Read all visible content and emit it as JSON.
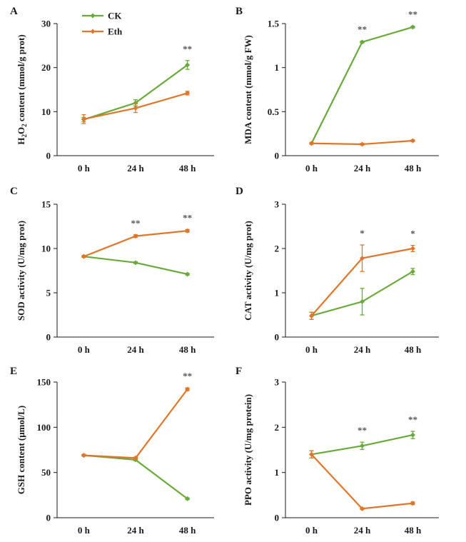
{
  "colors": {
    "CK": "#6aaa3a",
    "Eth": "#e0762a",
    "axis": "#1a1a1a"
  },
  "legend": [
    {
      "name": "CK",
      "color_key": "CK"
    },
    {
      "name": "Eth",
      "color_key": "Eth"
    }
  ],
  "chart_data": [
    {
      "panel": "A",
      "type": "line",
      "x": [
        "0 h",
        "24 h",
        "48 h"
      ],
      "ylabel": "H2O2 content (mmol/g prot)",
      "ylim": [
        0,
        30
      ],
      "yticks": [
        0,
        10,
        20,
        30
      ],
      "series": [
        {
          "name": "CK",
          "values": [
            8.2,
            12.0,
            20.6
          ],
          "errors": [
            0.5,
            0.7,
            1.0
          ]
        },
        {
          "name": "Eth",
          "values": [
            8.3,
            10.8,
            14.2
          ],
          "errors": [
            1.0,
            1.0,
            0.4
          ]
        }
      ],
      "significance": [
        "",
        "",
        "**"
      ]
    },
    {
      "panel": "B",
      "type": "line",
      "x": [
        "0 h",
        "24 h",
        "48 h"
      ],
      "ylabel": "MDA content (mmol/g FW)",
      "ylim": [
        0,
        1.5
      ],
      "yticks": [
        0,
        0.5,
        1,
        1.5
      ],
      "series": [
        {
          "name": "CK",
          "values": [
            0.14,
            1.29,
            1.46
          ],
          "errors": [
            0.01,
            0.01,
            0.01
          ]
        },
        {
          "name": "Eth",
          "values": [
            0.14,
            0.13,
            0.17
          ],
          "errors": [
            0.01,
            0.01,
            0.01
          ]
        }
      ],
      "significance": [
        "",
        "**",
        "**"
      ]
    },
    {
      "panel": "C",
      "type": "line",
      "x": [
        "0 h",
        "24 h",
        "48 h"
      ],
      "ylabel": "SOD activity (U/mg prot)",
      "ylim": [
        0,
        15
      ],
      "yticks": [
        0,
        5,
        10,
        15
      ],
      "series": [
        {
          "name": "CK",
          "values": [
            9.1,
            8.4,
            7.1
          ],
          "errors": [
            0.1,
            0.1,
            0.1
          ]
        },
        {
          "name": "Eth",
          "values": [
            9.1,
            11.4,
            12.0
          ],
          "errors": [
            0.1,
            0.15,
            0.15
          ]
        }
      ],
      "significance": [
        "",
        "**",
        "**"
      ]
    },
    {
      "panel": "D",
      "type": "line",
      "x": [
        "0 h",
        "24 h",
        "48 h"
      ],
      "ylabel": "CAT activity (U/mg prot)",
      "ylim": [
        0,
        3
      ],
      "yticks": [
        0,
        1,
        2,
        3
      ],
      "series": [
        {
          "name": "CK",
          "values": [
            0.48,
            0.8,
            1.48
          ],
          "errors": [
            0.08,
            0.3,
            0.07
          ]
        },
        {
          "name": "Eth",
          "values": [
            0.48,
            1.78,
            2.0
          ],
          "errors": [
            0.08,
            0.3,
            0.07
          ]
        }
      ],
      "significance": [
        "",
        "*",
        "*"
      ]
    },
    {
      "panel": "E",
      "type": "line",
      "x": [
        "0 h",
        "24 h",
        "48 h"
      ],
      "ylabel": "GSH content (μmol/L)",
      "ylim": [
        0,
        150
      ],
      "yticks": [
        0,
        50,
        100,
        150
      ],
      "series": [
        {
          "name": "CK",
          "values": [
            69,
            64,
            21
          ],
          "errors": [
            1,
            1,
            1
          ]
        },
        {
          "name": "Eth",
          "values": [
            69,
            66,
            142
          ],
          "errors": [
            1,
            1,
            1.5
          ]
        }
      ],
      "significance": [
        "",
        "",
        "**"
      ]
    },
    {
      "panel": "F",
      "type": "line",
      "x": [
        "0 h",
        "24 h",
        "48 h"
      ],
      "ylabel": "PPO activity (U/mg protein)",
      "ylim": [
        0,
        3
      ],
      "yticks": [
        0,
        1,
        2,
        3
      ],
      "series": [
        {
          "name": "CK",
          "values": [
            1.4,
            1.59,
            1.83
          ],
          "errors": [
            0.08,
            0.08,
            0.08
          ]
        },
        {
          "name": "Eth",
          "values": [
            1.4,
            0.2,
            0.32
          ],
          "errors": [
            0.08,
            0.02,
            0.03
          ]
        }
      ],
      "significance": [
        "",
        "**",
        "**"
      ]
    }
  ]
}
